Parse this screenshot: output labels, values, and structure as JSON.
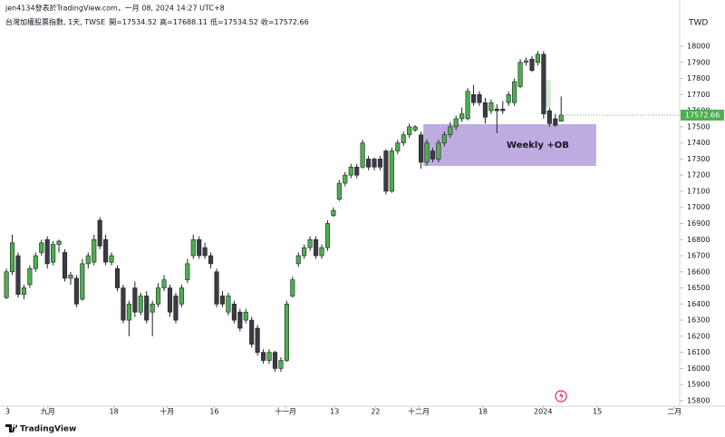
{
  "chart_data": {
    "type": "candlestick",
    "credit": "jen4134發表於TradingView.com，一月 08, 2024 14:27 UTC+8",
    "symbol_info": "台灣加權股票指數, 1天, TWSE",
    "ohlc_labels": [
      "開=",
      "高=",
      "低=",
      "收="
    ],
    "currency": "TWD",
    "brand": "TradingView",
    "up_color": "#4caf50",
    "down_color": "#3b3b45",
    "open": [
      16440,
      16600,
      16700,
      16460,
      16520,
      16620,
      16720,
      16800,
      16660,
      16770,
      16720,
      16560,
      16560,
      16430,
      16650,
      16660,
      16920,
      16800,
      16660,
      16620,
      16500,
      16300,
      16500,
      16350,
      16450,
      16350,
      16400,
      16500,
      16500,
      16450,
      16400,
      16550,
      16700,
      16800,
      16750,
      16700,
      16600,
      16450,
      16350,
      16400,
      16350,
      16300,
      16300,
      16250,
      16100,
      16050,
      16100,
      16000,
      16050,
      16450,
      16650,
      16700,
      16750,
      16800,
      16700,
      16750,
      16950,
      17050,
      17150,
      17200,
      17250,
      17250,
      17300,
      17300,
      17300,
      17350,
      17100,
      17350,
      17400,
      17450,
      17480,
      17450,
      17280,
      17350,
      17300,
      17400,
      17450,
      17500,
      17550,
      17550,
      17700,
      17700,
      17650,
      17600,
      17610,
      17610,
      17650,
      17650,
      17750,
      17900,
      17920,
      17900,
      17950,
      17600,
      17550,
      17534.52
    ],
    "high": [
      16620,
      16830,
      16720,
      16520,
      16640,
      16720,
      16800,
      16820,
      16790,
      16800,
      16740,
      16600,
      16580,
      16680,
      16720,
      16830,
      16940,
      16830,
      16720,
      16640,
      16520,
      16420,
      16540,
      16470,
      16480,
      16420,
      16530,
      16580,
      16520,
      16470,
      16520,
      16680,
      16830,
      16820,
      16780,
      16720,
      16620,
      16480,
      16470,
      16420,
      16370,
      16370,
      16320,
      16270,
      16120,
      16120,
      16110,
      16070,
      16420,
      16570,
      16720,
      16770,
      16820,
      16820,
      16770,
      16920,
      17000,
      17170,
      17220,
      17270,
      17270,
      17420,
      17320,
      17310,
      17320,
      17360,
      17370,
      17420,
      17470,
      17520,
      17510,
      17470,
      17420,
      17370,
      17420,
      17470,
      17530,
      17570,
      17620,
      17740,
      17760,
      17720,
      17680,
      17670,
      17640,
      17660,
      17720,
      17800,
      17920,
      17930,
      17940,
      17970,
      17970,
      17620,
      17580,
      17688.11
    ],
    "low": [
      16430,
      16580,
      16440,
      16430,
      16500,
      16600,
      16700,
      16620,
      16640,
      16720,
      16540,
      16520,
      16380,
      16420,
      16620,
      16640,
      16740,
      16640,
      16640,
      16480,
      16280,
      16200,
      16320,
      16330,
      16280,
      16200,
      16380,
      16480,
      16320,
      16280,
      16380,
      16530,
      16680,
      16680,
      16680,
      16620,
      16380,
      16380,
      16330,
      16280,
      16230,
      16280,
      16130,
      16080,
      16030,
      16030,
      15980,
      15980,
      16040,
      16440,
      16630,
      16680,
      16730,
      16680,
      16680,
      16730,
      16940,
      17040,
      17130,
      17180,
      17180,
      17240,
      17230,
      17230,
      17230,
      17080,
      17090,
      17330,
      17380,
      17430,
      17470,
      17240,
      17260,
      17280,
      17280,
      17380,
      17430,
      17480,
      17530,
      17540,
      17630,
      17630,
      17520,
      17580,
      17460,
      17580,
      17630,
      17630,
      17740,
      17880,
      17840,
      17880,
      17550,
      17500,
      17500,
      17534.52
    ],
    "close": [
      16600,
      16780,
      16460,
      16500,
      16620,
      16700,
      16780,
      16650,
      16770,
      16790,
      16560,
      16580,
      16400,
      16650,
      16700,
      16800,
      16760,
      16660,
      16700,
      16500,
      16300,
      16400,
      16350,
      16450,
      16300,
      16400,
      16500,
      16550,
      16350,
      16300,
      16500,
      16650,
      16800,
      16700,
      16700,
      16650,
      16400,
      16400,
      16450,
      16300,
      16250,
      16350,
      16150,
      16100,
      16050,
      16100,
      16000,
      16050,
      16400,
      16550,
      16700,
      16750,
      16800,
      16700,
      16750,
      16900,
      16980,
      17150,
      17200,
      17250,
      17200,
      17400,
      17250,
      17250,
      17250,
      17100,
      17350,
      17400,
      17450,
      17500,
      17500,
      17280,
      17400,
      17300,
      17400,
      17450,
      17500,
      17550,
      17580,
      17720,
      17650,
      17650,
      17560,
      17650,
      17600,
      17600,
      17700,
      17780,
      17900,
      17910,
      17850,
      17950,
      17580,
      17520,
      17510,
      17572.66
    ],
    "xlim": [
      -1.1,
      115.3
    ],
    "xticks": [
      {
        "value": 0.2,
        "label": "3"
      },
      {
        "value": 7.1,
        "label": "九月"
      },
      {
        "value": 18.4,
        "label": "18"
      },
      {
        "value": 27.5,
        "label": "十月"
      },
      {
        "value": 35.6,
        "label": "16"
      },
      {
        "value": 47.8,
        "label": "十一月"
      },
      {
        "value": 56.2,
        "label": "13"
      },
      {
        "value": 63.2,
        "label": "22"
      },
      {
        "value": 70.6,
        "label": "十二月"
      },
      {
        "value": 81.6,
        "label": "18"
      },
      {
        "value": 91.9,
        "label": "2024"
      },
      {
        "value": 101.2,
        "label": "15"
      },
      {
        "value": 114.4,
        "label": "二月"
      }
    ],
    "ylim": [
      15766,
      18287
    ],
    "yticks": [
      15800,
      15900,
      16000,
      16100,
      16200,
      16300,
      16400,
      16500,
      16600,
      16700,
      16800,
      16900,
      17000,
      17100,
      17200,
      17300,
      17400,
      17500,
      17600,
      17700,
      17800,
      17900,
      18000
    ],
    "annotations": [
      {
        "text": "Weekly +OB",
        "x_range": [
          71.4,
          101
        ],
        "y_range": [
          17257,
          17516
        ],
        "color": "#b39ddb"
      }
    ]
  }
}
